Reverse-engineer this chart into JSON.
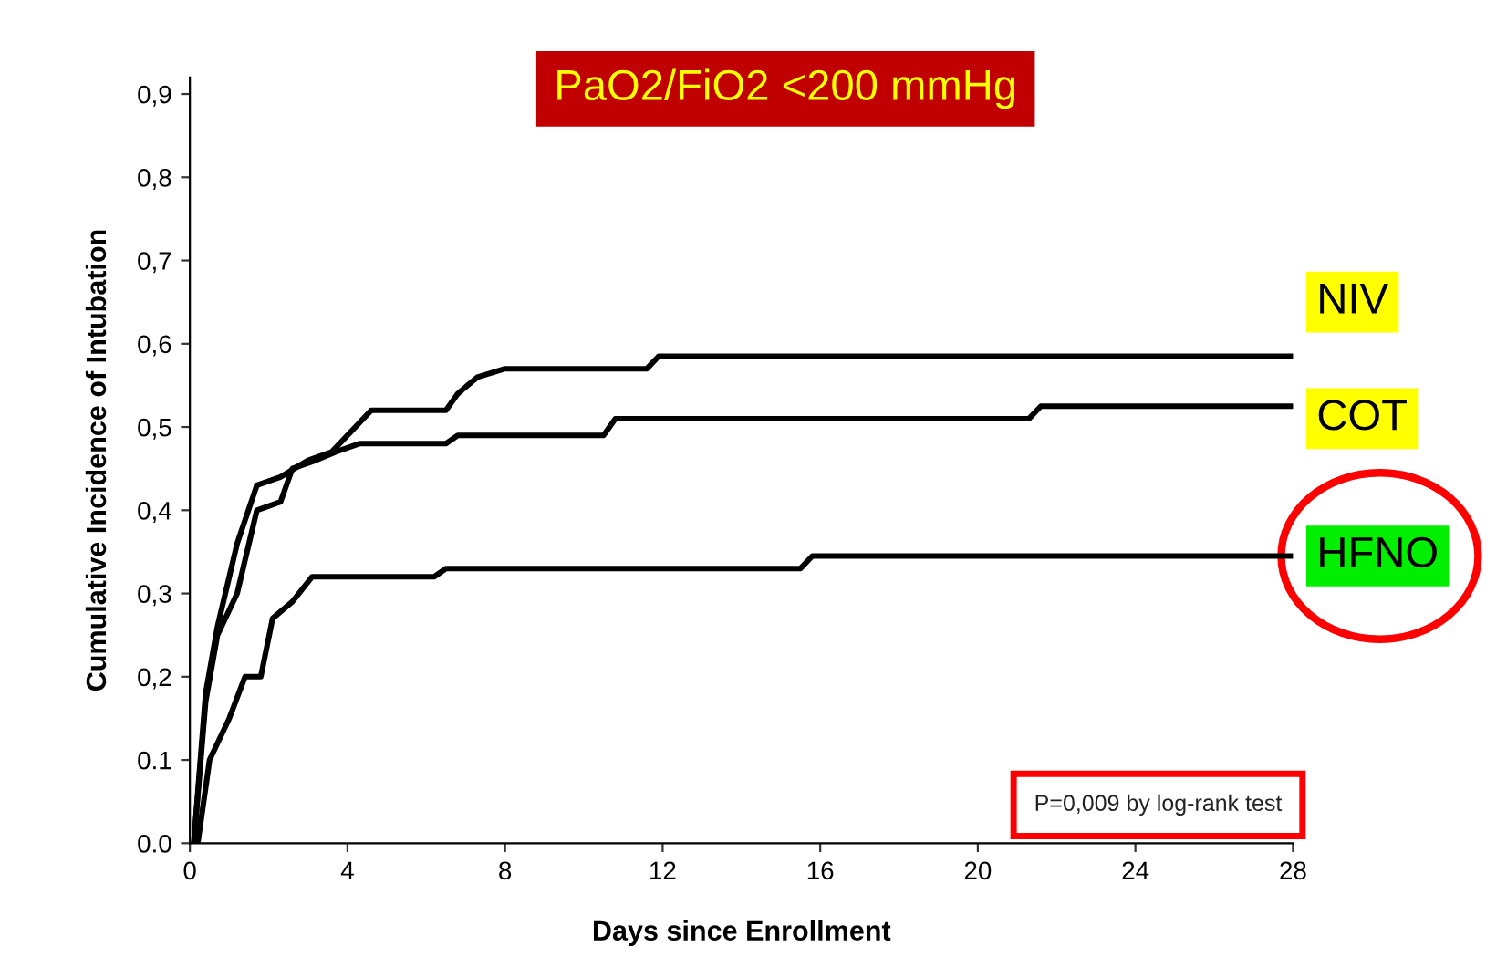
{
  "chart_data": {
    "type": "line",
    "title": "PaO2/FiO2 <200 mmHg",
    "xlabel": "Days since Enrollment",
    "ylabel": "Cumulative Incidence of Intubation",
    "series": [
      {
        "name": "NIV",
        "color": "#000000",
        "x": [
          0.1,
          0.4,
          0.7,
          1.2,
          1.7,
          2.3,
          3.0,
          3.6,
          4.2,
          4.6,
          6.5,
          6.8,
          7.3,
          8.0,
          11.6,
          11.9,
          28
        ],
        "values": [
          0,
          0.18,
          0.26,
          0.36,
          0.43,
          0.44,
          0.46,
          0.47,
          0.5,
          0.52,
          0.52,
          0.54,
          0.56,
          0.57,
          0.57,
          0.585,
          0.585
        ]
      },
      {
        "name": "COT",
        "color": "#000000",
        "x": [
          0.1,
          0.4,
          0.7,
          1.2,
          1.7,
          2.3,
          2.6,
          3.2,
          3.7,
          4.3,
          6.5,
          6.8,
          10.5,
          10.8,
          21.3,
          21.6,
          28
        ],
        "values": [
          0,
          0.17,
          0.25,
          0.3,
          0.4,
          0.41,
          0.45,
          0.46,
          0.47,
          0.48,
          0.48,
          0.49,
          0.49,
          0.51,
          0.51,
          0.525,
          0.525
        ]
      },
      {
        "name": "HFNO",
        "color": "#000000",
        "x": [
          0.2,
          0.5,
          1.0,
          1.4,
          1.8,
          2.1,
          2.6,
          3.1,
          6.2,
          6.5,
          15.5,
          15.8,
          28
        ],
        "values": [
          0,
          0.1,
          0.15,
          0.2,
          0.2,
          0.27,
          0.29,
          0.32,
          0.32,
          0.33,
          0.33,
          0.345,
          0.345
        ]
      }
    ],
    "xlim": [
      0,
      28
    ],
    "ylim": [
      0,
      0.92
    ],
    "xticks": [
      0,
      4,
      8,
      12,
      16,
      20,
      24,
      28
    ],
    "yticks": [
      {
        "value": 0,
        "label": "0.0"
      },
      {
        "value": 0.1,
        "label": "0.1"
      },
      {
        "value": 0.2,
        "label": "0,2"
      },
      {
        "value": 0.3,
        "label": "0,3"
      },
      {
        "value": 0.4,
        "label": "0,4"
      },
      {
        "value": 0.5,
        "label": "0,5"
      },
      {
        "value": 0.6,
        "label": "0,6"
      },
      {
        "value": 0.7,
        "label": "0,7"
      },
      {
        "value": 0.8,
        "label": "0,8"
      },
      {
        "value": 0.9,
        "label": "0,9"
      }
    ],
    "annotations": [
      "P=0,009 by log-rank test"
    ],
    "grid": false,
    "legend": false,
    "marker": "none",
    "line_style": "solid"
  }
}
